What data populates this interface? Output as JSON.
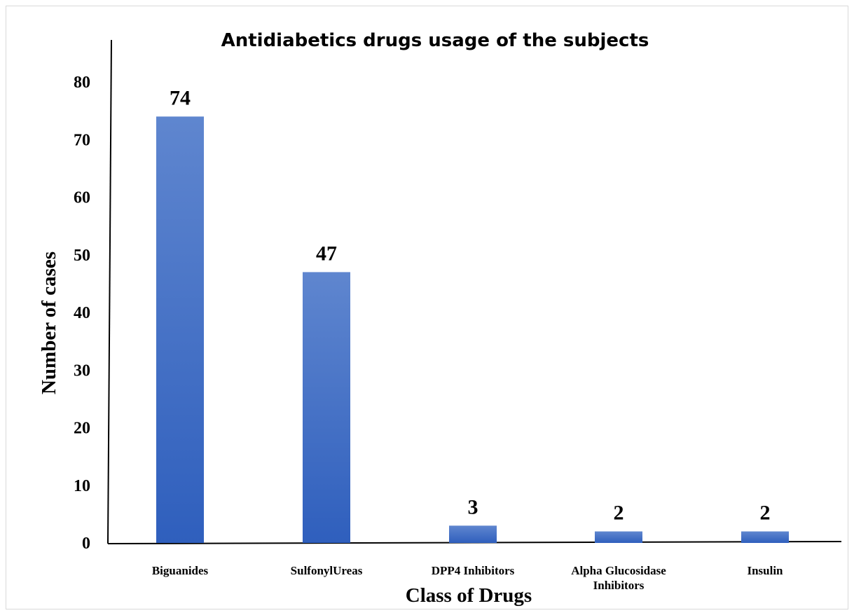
{
  "chart_data": {
    "type": "bar",
    "title": "Antidiabetics drugs usage of the subjects",
    "xlabel": "Class of Drugs",
    "ylabel": "Number of cases",
    "categories": [
      [
        "Biguanides"
      ],
      [
        "SulfonylUreas"
      ],
      [
        "DPP4 Inhibitors"
      ],
      [
        "Alpha Glucosidase",
        "Inhibitors"
      ],
      [
        "Insulin"
      ]
    ],
    "values": [
      74,
      47,
      3,
      2,
      2
    ],
    "ylim": [
      0,
      80
    ],
    "yticks": [
      0,
      10,
      20,
      30,
      40,
      50,
      60,
      70,
      80
    ],
    "bar_color_top": "#5f86cf",
    "bar_color_bottom": "#2f5fbd",
    "axis_color": "#000000",
    "grid": false,
    "legend": "none"
  }
}
